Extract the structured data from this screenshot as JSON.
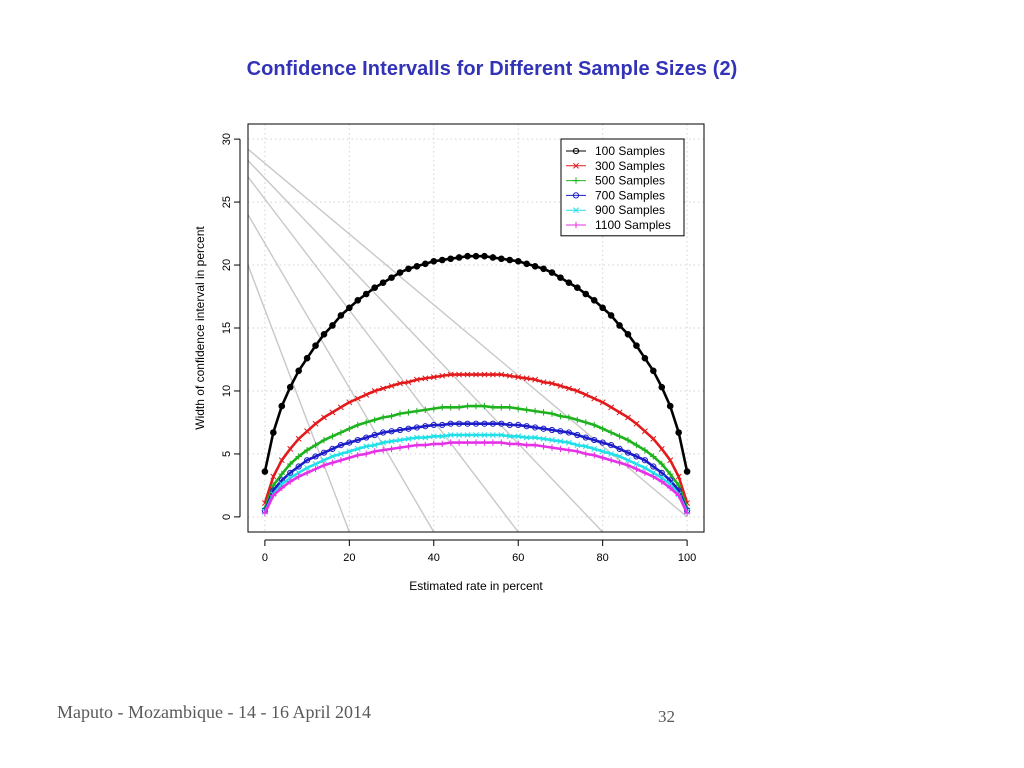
{
  "slide": {
    "title": "Confidence Intervalls for Different Sample Sizes (2)",
    "footer_left": "Maputo - Mozambique - 14 - 16 April 2014",
    "page_number": "32"
  },
  "chart_data": {
    "type": "line",
    "xlabel": "Estimated rate in percent",
    "ylabel": "Width of confidence interval in percent",
    "xlim": [
      -4,
      104
    ],
    "ylim": [
      -1.2,
      31.2
    ],
    "xticks": [
      0,
      20,
      40,
      60,
      80,
      100
    ],
    "yticks": [
      0,
      5,
      10,
      15,
      20,
      25,
      30
    ],
    "grid": true,
    "legend_position": "top-right",
    "x": [
      0,
      2,
      4,
      6,
      8,
      10,
      12,
      14,
      16,
      18,
      20,
      22,
      24,
      26,
      28,
      30,
      32,
      34,
      36,
      38,
      40,
      42,
      44,
      46,
      48,
      50,
      52,
      54,
      56,
      58,
      60,
      62,
      64,
      66,
      68,
      70,
      72,
      74,
      76,
      78,
      80,
      82,
      84,
      86,
      88,
      90,
      92,
      94,
      96,
      98,
      100
    ],
    "series": [
      {
        "name": "100 Samples",
        "color": "#000000",
        "marker": "circle-filled",
        "values": [
          3.6,
          6.7,
          8.8,
          10.3,
          11.6,
          12.6,
          13.6,
          14.5,
          15.2,
          16.0,
          16.6,
          17.2,
          17.7,
          18.2,
          18.6,
          19.0,
          19.4,
          19.7,
          19.9,
          20.1,
          20.3,
          20.4,
          20.5,
          20.6,
          20.7,
          20.7,
          20.7,
          20.6,
          20.5,
          20.4,
          20.3,
          20.1,
          19.9,
          19.7,
          19.4,
          19.0,
          18.6,
          18.2,
          17.7,
          17.2,
          16.6,
          16.0,
          15.2,
          14.5,
          13.6,
          12.6,
          11.6,
          10.3,
          8.8,
          6.7,
          3.6
        ]
      },
      {
        "name": "300 Samples",
        "color": "#e31a1c",
        "marker": "x",
        "values": [
          1.1,
          3.2,
          4.5,
          5.4,
          6.2,
          6.8,
          7.4,
          7.9,
          8.3,
          8.7,
          9.1,
          9.4,
          9.7,
          10.0,
          10.2,
          10.4,
          10.6,
          10.7,
          10.9,
          11.0,
          11.1,
          11.2,
          11.3,
          11.3,
          11.3,
          11.3,
          11.3,
          11.3,
          11.3,
          11.2,
          11.1,
          11.0,
          10.9,
          10.7,
          10.6,
          10.4,
          10.2,
          10.0,
          9.7,
          9.4,
          9.1,
          8.7,
          8.3,
          7.9,
          7.4,
          6.8,
          6.2,
          5.4,
          4.5,
          3.2,
          1.1
        ]
      },
      {
        "name": "500 Samples",
        "color": "#1fb21f",
        "marker": "plus",
        "values": [
          0.7,
          2.5,
          3.4,
          4.2,
          4.8,
          5.3,
          5.7,
          6.1,
          6.4,
          6.7,
          7.0,
          7.3,
          7.5,
          7.7,
          7.9,
          8.0,
          8.2,
          8.3,
          8.4,
          8.5,
          8.6,
          8.7,
          8.7,
          8.7,
          8.8,
          8.8,
          8.8,
          8.7,
          8.7,
          8.7,
          8.6,
          8.5,
          8.4,
          8.3,
          8.2,
          8.0,
          7.9,
          7.7,
          7.5,
          7.3,
          7.0,
          6.7,
          6.4,
          6.1,
          5.7,
          5.3,
          4.8,
          4.2,
          3.4,
          2.5,
          0.7
        ]
      },
      {
        "name": "700 Samples",
        "color": "#1c1cc8",
        "marker": "circle",
        "values": [
          0.5,
          2.1,
          2.9,
          3.5,
          4.0,
          4.5,
          4.8,
          5.1,
          5.4,
          5.7,
          5.9,
          6.1,
          6.3,
          6.5,
          6.7,
          6.8,
          6.9,
          7.0,
          7.1,
          7.2,
          7.3,
          7.3,
          7.4,
          7.4,
          7.4,
          7.4,
          7.4,
          7.4,
          7.4,
          7.3,
          7.3,
          7.2,
          7.1,
          7.0,
          6.9,
          6.8,
          6.7,
          6.5,
          6.3,
          6.1,
          5.9,
          5.7,
          5.4,
          5.1,
          4.8,
          4.5,
          4.0,
          3.5,
          2.9,
          2.1,
          0.5
        ]
      },
      {
        "name": "900 Samples",
        "color": "#22e0e8",
        "marker": "x",
        "values": [
          0.4,
          1.8,
          2.6,
          3.1,
          3.5,
          3.9,
          4.2,
          4.5,
          4.8,
          5.0,
          5.2,
          5.4,
          5.6,
          5.7,
          5.9,
          6.0,
          6.1,
          6.2,
          6.3,
          6.3,
          6.4,
          6.4,
          6.5,
          6.5,
          6.5,
          6.5,
          6.5,
          6.5,
          6.5,
          6.4,
          6.4,
          6.3,
          6.3,
          6.2,
          6.1,
          6.0,
          5.9,
          5.7,
          5.6,
          5.4,
          5.2,
          5.0,
          4.8,
          4.5,
          4.2,
          3.9,
          3.5,
          3.1,
          2.6,
          1.8,
          0.4
        ]
      },
      {
        "name": "1100 Samples",
        "color": "#e632e6",
        "marker": "plus",
        "values": [
          0.3,
          1.7,
          2.3,
          2.8,
          3.2,
          3.5,
          3.8,
          4.1,
          4.3,
          4.5,
          4.7,
          4.9,
          5.0,
          5.2,
          5.3,
          5.4,
          5.5,
          5.6,
          5.7,
          5.7,
          5.8,
          5.8,
          5.9,
          5.9,
          5.9,
          5.9,
          5.9,
          5.9,
          5.9,
          5.8,
          5.8,
          5.7,
          5.7,
          5.6,
          5.5,
          5.4,
          5.3,
          5.2,
          5.0,
          4.9,
          4.7,
          4.5,
          4.3,
          4.1,
          3.8,
          3.5,
          3.2,
          2.8,
          2.3,
          1.7,
          0.3
        ]
      }
    ],
    "reference_lines": {
      "color": "#c8c8c8",
      "lines": [
        [
          [
            -4,
            20
          ],
          [
            20,
            -1.2
          ]
        ],
        [
          [
            -4,
            24
          ],
          [
            40,
            -1.2
          ]
        ],
        [
          [
            -4,
            27
          ],
          [
            60,
            -1.2
          ]
        ],
        [
          [
            -4,
            28.3
          ],
          [
            80,
            -1.2
          ]
        ],
        [
          [
            -4,
            29.2
          ],
          [
            100,
            0
          ]
        ]
      ]
    }
  }
}
